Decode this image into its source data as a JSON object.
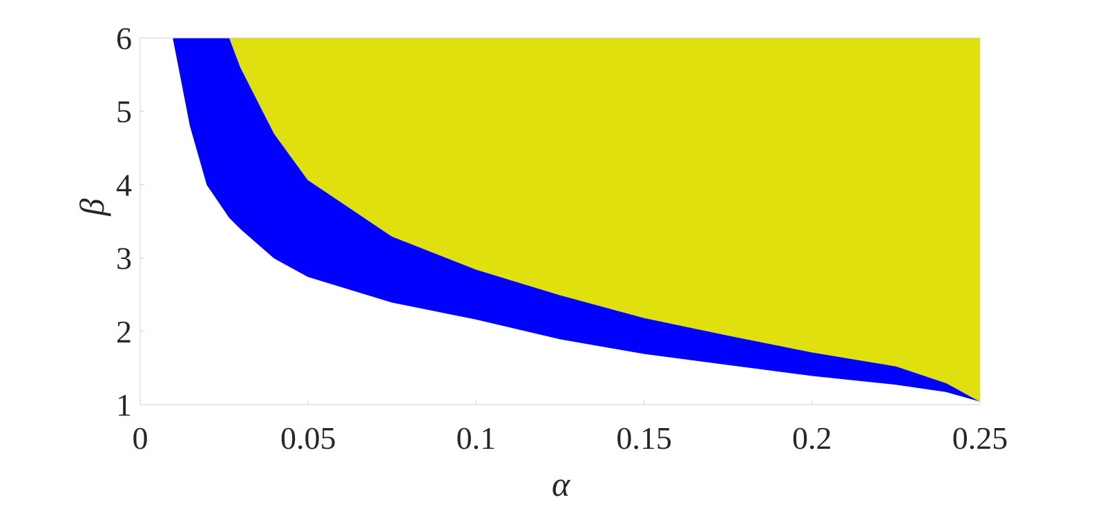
{
  "chart_data": {
    "type": "region",
    "x_label": "α",
    "y_label": "β",
    "x": [
      0.0099,
      0.015,
      0.02,
      0.0267,
      0.03,
      0.04,
      0.05,
      0.075,
      0.1,
      0.125,
      0.15,
      0.175,
      0.2,
      0.225,
      0.24,
      0.25
    ],
    "series": [
      {
        "color": "#0000ff",
        "values": [
          6,
          4.8,
          4.0,
          3.55,
          3.4,
          3.0,
          2.75,
          2.4,
          2.17,
          1.9,
          1.7,
          1.55,
          1.4,
          1.28,
          1.18,
          1.05
        ]
      },
      {
        "color": "#dfe00d",
        "values": [
          null,
          null,
          null,
          6,
          5.6,
          4.7,
          4.07,
          3.3,
          2.85,
          2.5,
          2.19,
          1.95,
          1.72,
          1.53,
          1.3,
          1.05
        ]
      }
    ],
    "xlim": [
      0,
      0.25
    ],
    "ylim": [
      1,
      6
    ],
    "xticks": [
      0,
      0.05,
      0.1,
      0.15,
      0.2,
      0.25
    ],
    "yticks": [
      1,
      2,
      3,
      4,
      5,
      6
    ]
  }
}
